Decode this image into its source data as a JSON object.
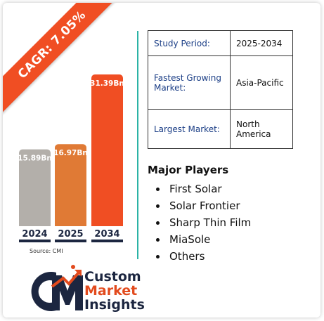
{
  "cagr_label": "CAGR: 7.05%",
  "source": "Source: CMI",
  "chart_data": {
    "type": "bar",
    "categories": [
      "2024",
      "2025",
      "2034"
    ],
    "values": [
      15.89,
      16.97,
      31.39
    ],
    "value_labels": [
      "15.89Bn",
      "16.97Bn",
      "31.39Bn"
    ],
    "colors": [
      "#b3afaa",
      "#e07a35",
      "#f04e23"
    ],
    "title": "",
    "xlabel": "",
    "ylabel": ""
  },
  "table": [
    {
      "key": "Study Period:",
      "value": "2025-2034"
    },
    {
      "key": "Fastest Growing Market:",
      "value": "Asia-Pacific"
    },
    {
      "key": "Largest Market:",
      "value": "North America"
    }
  ],
  "players": {
    "title": "Major Players",
    "items": [
      "First Solar",
      "Solar Frontier",
      "Sharp Thin Film",
      "MiaSole",
      "Others"
    ]
  },
  "logo": {
    "line1": "Custom",
    "line2": "Market",
    "line3": "Insights"
  },
  "colors": {
    "accent": "#f04e23",
    "navy": "#1c2640",
    "divider": "#2bb3a6",
    "table_key": "#1b3e86"
  }
}
